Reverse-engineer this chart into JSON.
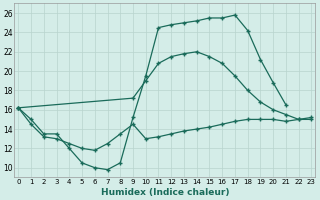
{
  "bg_color": "#d4ede8",
  "line_color": "#1a6b5a",
  "xlabel": "Humidex (Indice chaleur)",
  "xlim": [
    -0.3,
    23.3
  ],
  "ylim": [
    9,
    27
  ],
  "xticks": [
    0,
    1,
    2,
    3,
    4,
    5,
    6,
    7,
    8,
    9,
    10,
    11,
    12,
    13,
    14,
    15,
    16,
    17,
    18,
    19,
    20,
    21,
    22,
    23
  ],
  "yticks": [
    10,
    12,
    14,
    16,
    18,
    20,
    22,
    24,
    26
  ],
  "grid_color": "#b8d4ce",
  "curve1_x": [
    0,
    1,
    2,
    3,
    4,
    5,
    6,
    7,
    8,
    9,
    10,
    11,
    12,
    13,
    14,
    15,
    16,
    17,
    18,
    19,
    20,
    21
  ],
  "curve1_y": [
    16.2,
    15.0,
    13.5,
    13.5,
    12.0,
    10.5,
    10.0,
    9.8,
    10.5,
    15.2,
    19.5,
    24.5,
    24.8,
    25.0,
    25.2,
    25.5,
    25.5,
    25.8,
    24.2,
    21.2,
    18.8,
    16.5
  ],
  "curve2_x": [
    0,
    9,
    10,
    11,
    12,
    13,
    14,
    15,
    16,
    17,
    18,
    19,
    20,
    21,
    22,
    23
  ],
  "curve2_y": [
    16.2,
    17.2,
    19.0,
    20.8,
    21.5,
    21.8,
    22.0,
    21.5,
    20.8,
    19.5,
    18.0,
    16.8,
    16.0,
    15.5,
    15.0,
    15.0
  ],
  "curve3_x": [
    0,
    1,
    2,
    3,
    4,
    5,
    6,
    7,
    8,
    9,
    10,
    11,
    12,
    13,
    14,
    15,
    16,
    17,
    18,
    19,
    20,
    21,
    22,
    23
  ],
  "curve3_y": [
    16.2,
    14.5,
    13.2,
    13.0,
    12.5,
    12.0,
    11.8,
    12.5,
    13.5,
    14.5,
    13.0,
    13.2,
    13.5,
    13.8,
    14.0,
    14.2,
    14.5,
    14.8,
    15.0,
    15.0,
    15.0,
    14.8,
    15.0,
    15.2
  ]
}
